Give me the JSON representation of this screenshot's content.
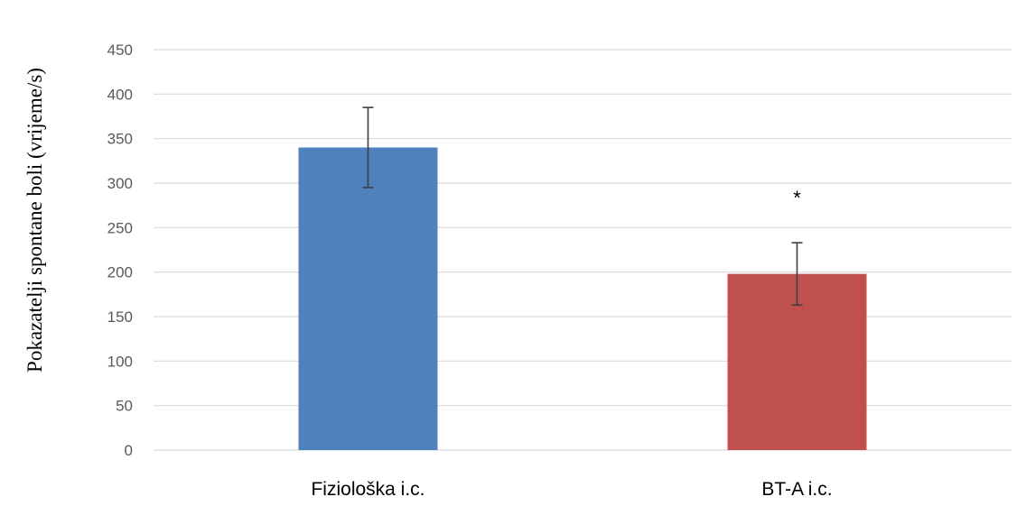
{
  "chart_data": {
    "type": "bar",
    "categories": [
      "Fiziološka i.c.",
      "BT-A i.c."
    ],
    "values": [
      340,
      198
    ],
    "error": [
      45,
      35
    ],
    "colors": [
      "#4f81bd",
      "#c0504d"
    ],
    "annotations": [
      {
        "category": "BT-A i.c.",
        "text": "*"
      }
    ],
    "ylabel": "Pokazatelji spontane boli (vrijeme/s)",
    "xlabel": "",
    "ylim": [
      0,
      450
    ],
    "yticks": [
      0,
      50,
      100,
      150,
      200,
      250,
      300,
      350,
      400,
      450
    ],
    "grid": true,
    "legend": false
  }
}
